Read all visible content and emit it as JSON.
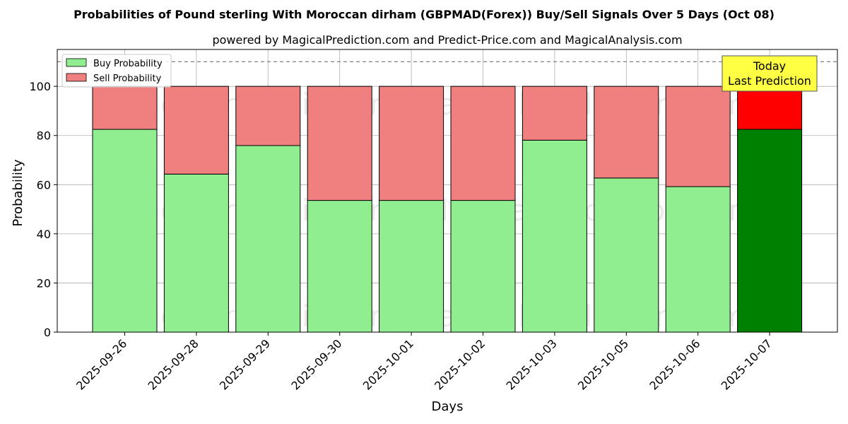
{
  "chart_data": {
    "type": "bar",
    "stacked": true,
    "title": "Probabilities of Pound sterling With Moroccan dirham (GBPMAD(Forex)) Buy/Sell Signals Over 5 Days (Oct 08)",
    "subtitle": "powered by MagicalPrediction.com and Predict-Price.com and MagicalAnalysis.com",
    "xlabel": "Days",
    "ylabel": "Probability",
    "ylim": [
      0,
      115
    ],
    "yticks": [
      0,
      20,
      40,
      60,
      80,
      100
    ],
    "grid": true,
    "legend_position": "top-left",
    "reference_line": 110,
    "categories": [
      "2025-09-26",
      "2025-09-28",
      "2025-09-29",
      "2025-09-30",
      "2025-10-01",
      "2025-10-02",
      "2025-10-03",
      "2025-10-05",
      "2025-10-06",
      "2025-10-07"
    ],
    "series": [
      {
        "name": "Buy Probability",
        "color": "#90ee90",
        "highlight_color": "#008000",
        "values": [
          82.5,
          64.3,
          75.9,
          53.6,
          53.6,
          53.6,
          78.1,
          62.7,
          59.2,
          82.5
        ]
      },
      {
        "name": "Sell Probability",
        "color": "#f08080",
        "highlight_color": "#ff0000",
        "values": [
          17.5,
          35.7,
          24.1,
          46.4,
          46.4,
          46.4,
          21.9,
          37.3,
          40.8,
          17.5
        ]
      }
    ],
    "highlight_index": 9,
    "annotation": {
      "line1": "Today",
      "line2": "Last Prediction",
      "bg": "#ffff44"
    },
    "watermarks": [
      "MagicalAnalysis.com",
      "MagicalPrediction.com"
    ]
  }
}
